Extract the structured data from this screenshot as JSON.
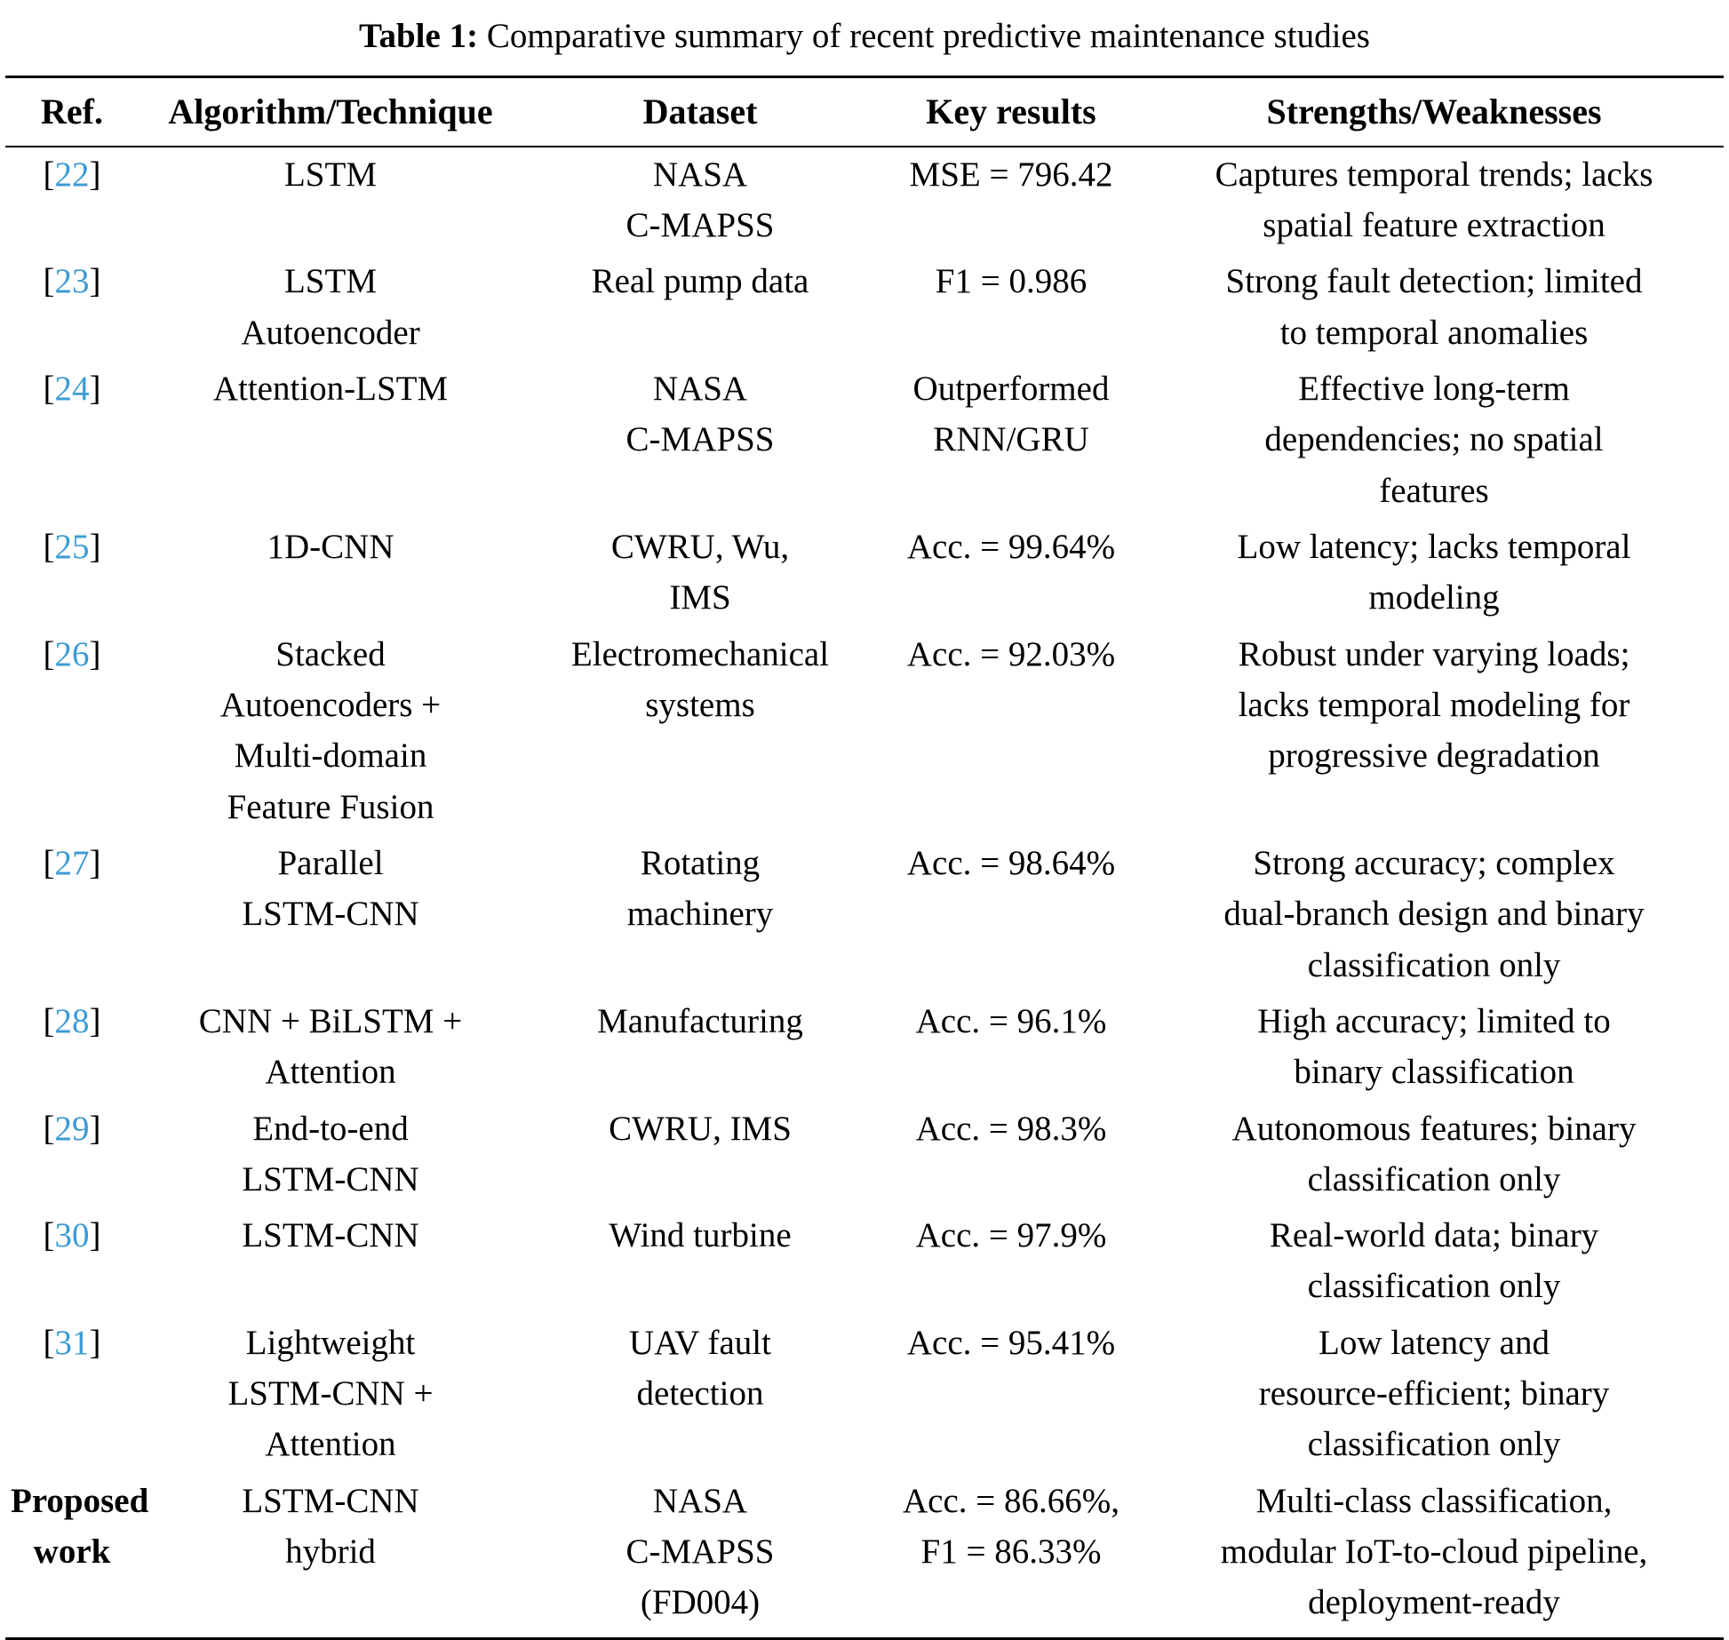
{
  "accent_color": "#3c9bd5",
  "title": {
    "label": "Table 1:",
    "text": "Comparative summary of recent predictive maintenance studies"
  },
  "columns": [
    "Ref.",
    "Algorithm/Technique",
    "Dataset",
    "Key results",
    "Strengths/Weaknesses"
  ],
  "rows": [
    {
      "ref": "22",
      "ref_type": "citation",
      "algorithm": "LSTM",
      "dataset": "NASA\nC-MAPSS",
      "results": "MSE = 796.42",
      "notes": "Captures temporal trends; lacks\nspatial feature extraction"
    },
    {
      "ref": "23",
      "ref_type": "citation",
      "algorithm": "LSTM\nAutoencoder",
      "dataset": "Real pump data",
      "results": "F1 = 0.986",
      "notes": "Strong fault detection; limited\nto temporal anomalies"
    },
    {
      "ref": "24",
      "ref_type": "citation",
      "algorithm": "Attention-LSTM",
      "dataset": "NASA\nC-MAPSS",
      "results": "Outperformed\nRNN/GRU",
      "notes": "Effective long-term\ndependencies; no spatial\nfeatures"
    },
    {
      "ref": "25",
      "ref_type": "citation",
      "algorithm": "1D-CNN",
      "dataset": "CWRU, Wu,\nIMS",
      "results": "Acc. = 99.64%",
      "notes": "Low latency; lacks temporal\nmodeling"
    },
    {
      "ref": "26",
      "ref_type": "citation",
      "algorithm": "Stacked\nAutoencoders +\nMulti-domain\nFeature Fusion",
      "dataset": "Electromechanical\nsystems",
      "results": "Acc. = 92.03%",
      "notes": "Robust under varying loads;\nlacks temporal modeling for\nprogressive degradation"
    },
    {
      "ref": "27",
      "ref_type": "citation",
      "algorithm": "Parallel\nLSTM-CNN",
      "dataset": "Rotating\nmachinery",
      "results": "Acc. = 98.64%",
      "notes": "Strong accuracy; complex\ndual-branch design and binary\nclassification only"
    },
    {
      "ref": "28",
      "ref_type": "citation",
      "algorithm": "CNN + BiLSTM +\nAttention",
      "dataset": "Manufacturing",
      "results": "Acc. = 96.1%",
      "notes": "High accuracy; limited to\nbinary classification"
    },
    {
      "ref": "29",
      "ref_type": "citation",
      "algorithm": "End-to-end\nLSTM-CNN",
      "dataset": "CWRU, IMS",
      "results": "Acc. = 98.3%",
      "notes": "Autonomous features; binary\nclassification only"
    },
    {
      "ref": "30",
      "ref_type": "citation",
      "algorithm": "LSTM-CNN",
      "dataset": "Wind turbine",
      "results": "Acc. = 97.9%",
      "notes": "Real-world data; binary\nclassification only"
    },
    {
      "ref": "31",
      "ref_type": "citation",
      "algorithm": "Lightweight\nLSTM-CNN +\nAttention",
      "dataset": "UAV fault\ndetection",
      "results": "Acc. = 95.41%",
      "notes": "Low latency and\nresource-efficient; binary\nclassification only"
    },
    {
      "ref": "Proposed\nwork",
      "ref_type": "label",
      "algorithm": "LSTM-CNN\nhybrid",
      "dataset": "NASA\nC-MAPSS\n(FD004)",
      "results": "Acc. = 86.66%,\nF1 = 86.33%",
      "notes": "Multi-class classification,\nmodular IoT-to-cloud pipeline,\ndeployment-ready"
    }
  ]
}
